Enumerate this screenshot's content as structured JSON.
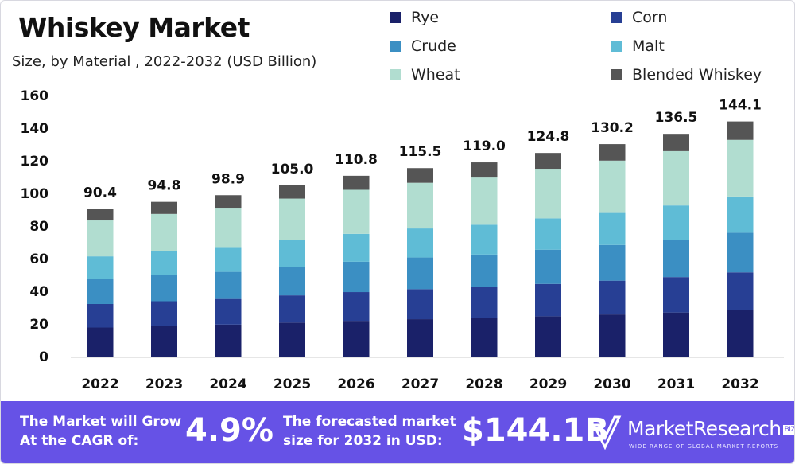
{
  "chart_data": {
    "type": "bar",
    "stacked": true,
    "title": "Whiskey Market",
    "subtitle": "Size, by Material , 2022-2032 (USD Billion)",
    "xlabel": "",
    "ylabel": "",
    "ylim": [
      0,
      160
    ],
    "yticks": [
      0,
      20,
      40,
      60,
      80,
      100,
      120,
      140,
      160
    ],
    "grid": false,
    "legend_position": "top-right",
    "categories": [
      "2022",
      "2023",
      "2024",
      "2025",
      "2026",
      "2027",
      "2028",
      "2029",
      "2030",
      "2031",
      "2032"
    ],
    "totals": [
      "90.4",
      "94.8",
      "98.9",
      "105.0",
      "110.8",
      "115.5",
      "119.0",
      "124.8",
      "130.2",
      "136.5",
      "144.1"
    ],
    "series": [
      {
        "name": "Rye",
        "color": "#1a2169",
        "values": [
          17.8,
          18.8,
          19.6,
          20.8,
          21.9,
          22.9,
          23.6,
          24.7,
          25.8,
          27.0,
          28.7
        ]
      },
      {
        "name": "Corn",
        "color": "#273f94",
        "values": [
          14.4,
          15.1,
          15.7,
          16.7,
          17.6,
          18.4,
          18.9,
          19.8,
          20.7,
          21.7,
          22.9
        ]
      },
      {
        "name": "Crude",
        "color": "#3b8fc3",
        "values": [
          15.2,
          15.9,
          16.6,
          17.6,
          18.6,
          19.4,
          20.0,
          21.0,
          21.9,
          22.9,
          24.3
        ]
      },
      {
        "name": "Malt",
        "color": "#5fbcd6",
        "values": [
          14.0,
          14.6,
          15.2,
          16.2,
          17.1,
          17.8,
          18.3,
          19.2,
          20.1,
          21.0,
          22.2
        ]
      },
      {
        "name": "Wheat",
        "color": "#b1ddd0",
        "values": [
          22.0,
          23.0,
          24.1,
          25.5,
          27.0,
          28.0,
          28.9,
          30.4,
          31.6,
          33.3,
          34.7
        ]
      },
      {
        "name": "Blended Whiskey",
        "color": "#555555",
        "values": [
          7.0,
          7.4,
          7.7,
          8.2,
          8.6,
          9.0,
          9.3,
          9.7,
          10.1,
          10.6,
          11.3
        ]
      }
    ]
  },
  "footer": {
    "cagr_label_1": "The Market will Grow",
    "cagr_label_2": "At the CAGR of:",
    "cagr_value": "4.9%",
    "forecast_label_1": "The forecasted market",
    "forecast_label_2": "size for 2032 in USD:",
    "forecast_value": "$144.1B",
    "background_color": "#6652e6"
  },
  "logo": {
    "name": "MarketResearch",
    "badge": "BIZ",
    "tagline": "WIDE RANGE OF GLOBAL MARKET REPORTS"
  }
}
